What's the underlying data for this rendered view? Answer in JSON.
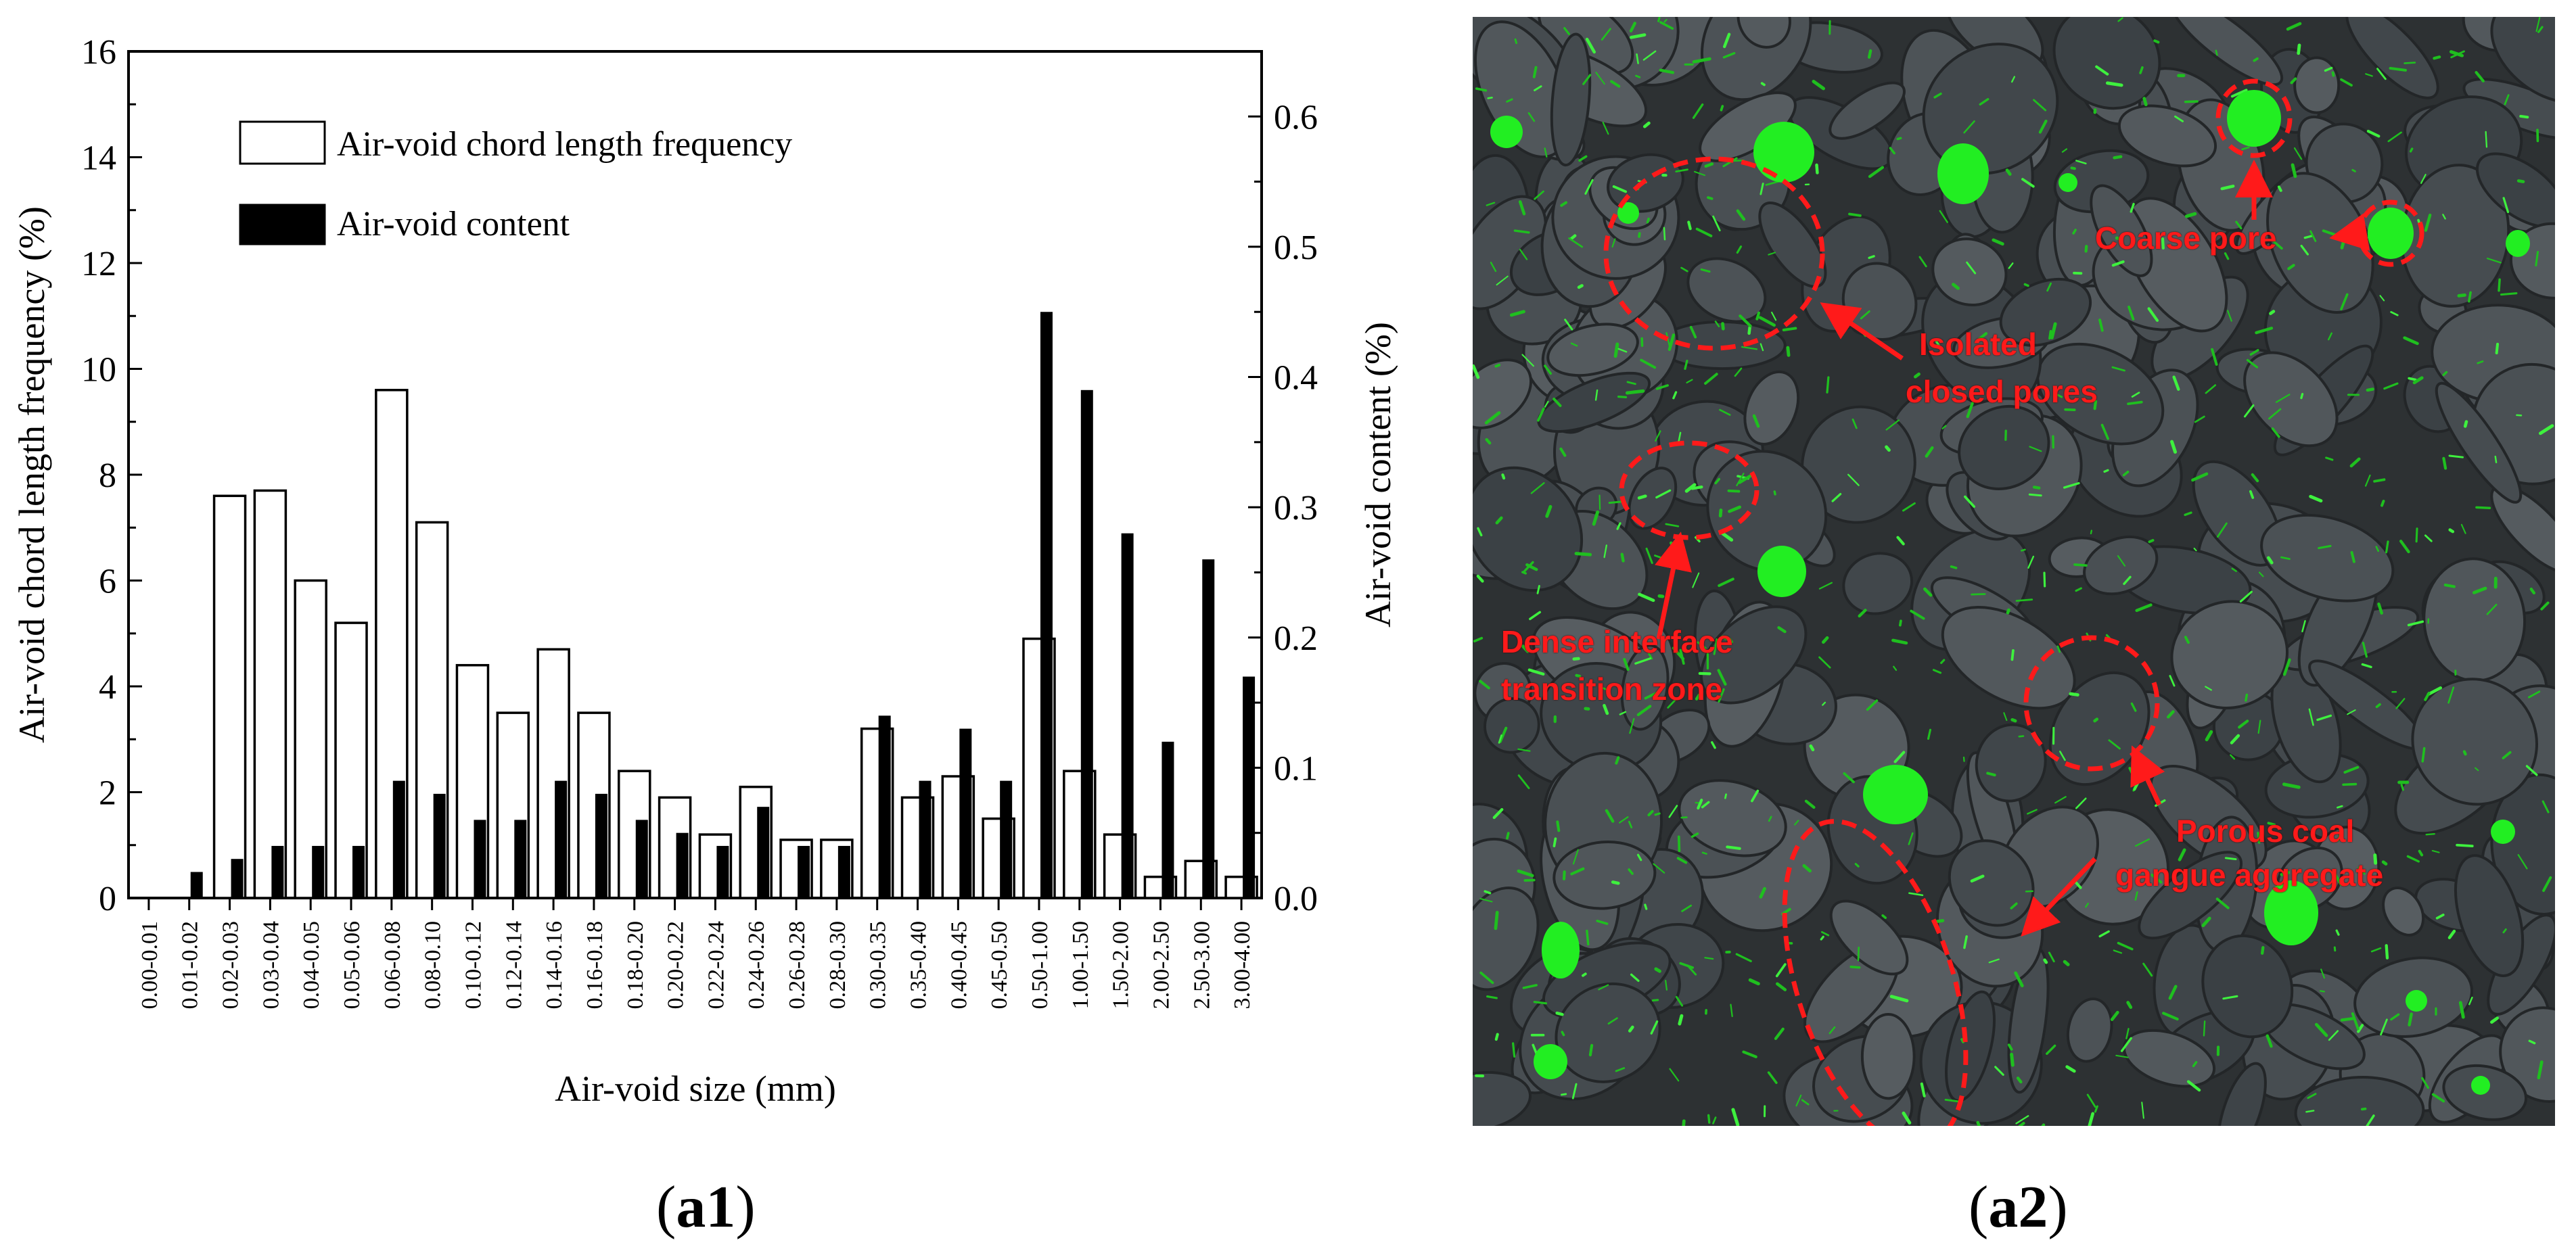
{
  "chart_data": {
    "type": "bar",
    "xlabel": "Air-void size (mm)",
    "ylabel": "Air-void chord length frequency (%)",
    "y2label": "Air-void content (%)",
    "ylim": [
      0,
      16
    ],
    "y2lim": [
      0,
      0.65
    ],
    "yticks": [
      "0",
      "2",
      "4",
      "6",
      "8",
      "10",
      "12",
      "14",
      "16"
    ],
    "y2ticks": [
      "0.0",
      "0.1",
      "0.2",
      "0.3",
      "0.4",
      "0.5",
      "0.6"
    ],
    "legend_position": "top-left",
    "categories": [
      "0.00-0.01",
      "0.01-0.02",
      "0.02-0.03",
      "0.03-0.04",
      "0.04-0.05",
      "0.05-0.06",
      "0.06-0.08",
      "0.08-0.10",
      "0.10-0.12",
      "0.12-0.14",
      "0.14-0.16",
      "0.16-0.18",
      "0.18-0.20",
      "0.20-0.22",
      "0.22-0.24",
      "0.24-0.26",
      "0.26-0.28",
      "0.28-0.30",
      "0.30-0.35",
      "0.35-0.40",
      "0.40-0.45",
      "0.45-0.50",
      "0.50-1.00",
      "1.00-1.50",
      "1.50-2.00",
      "2.00-2.50",
      "2.50-3.00",
      "3.00-4.00"
    ],
    "series": [
      {
        "name": "Air-void chord length frequency",
        "axis": "left",
        "style": "outline",
        "values": [
          0,
          0,
          7.6,
          7.7,
          6.0,
          5.2,
          9.6,
          7.1,
          4.4,
          3.5,
          4.7,
          3.5,
          2.4,
          1.9,
          1.2,
          2.1,
          1.1,
          1.1,
          3.2,
          1.9,
          2.3,
          1.5,
          4.9,
          2.4,
          1.2,
          0.4,
          0.7,
          0.4
        ]
      },
      {
        "name": "Air-void content",
        "axis": "right",
        "style": "filled",
        "values": [
          0,
          0.02,
          0.03,
          0.04,
          0.04,
          0.04,
          0.09,
          0.08,
          0.06,
          0.06,
          0.09,
          0.08,
          0.06,
          0.05,
          0.04,
          0.07,
          0.04,
          0.04,
          0.14,
          0.09,
          0.13,
          0.09,
          0.45,
          0.39,
          0.28,
          0.12,
          0.26,
          0.17
        ]
      }
    ]
  },
  "panels": {
    "left_label_bold": "a1",
    "right_label_bold": "a2",
    "open_paren": "(",
    "close_paren": ")"
  },
  "image_annotations": {
    "coarse_pore": "Coarse pore",
    "isolated_line1": "Isolated",
    "isolated_line2": "closed pores",
    "dense_line1": "Dense interface",
    "dense_line2": "transition zone",
    "porous_line1": "Porous coal",
    "porous_line2": "gangue aggregate"
  },
  "colors": {
    "annotation": "#ff1a1a",
    "pore_green": "#22ee22",
    "background_dark": "#2d3133"
  }
}
